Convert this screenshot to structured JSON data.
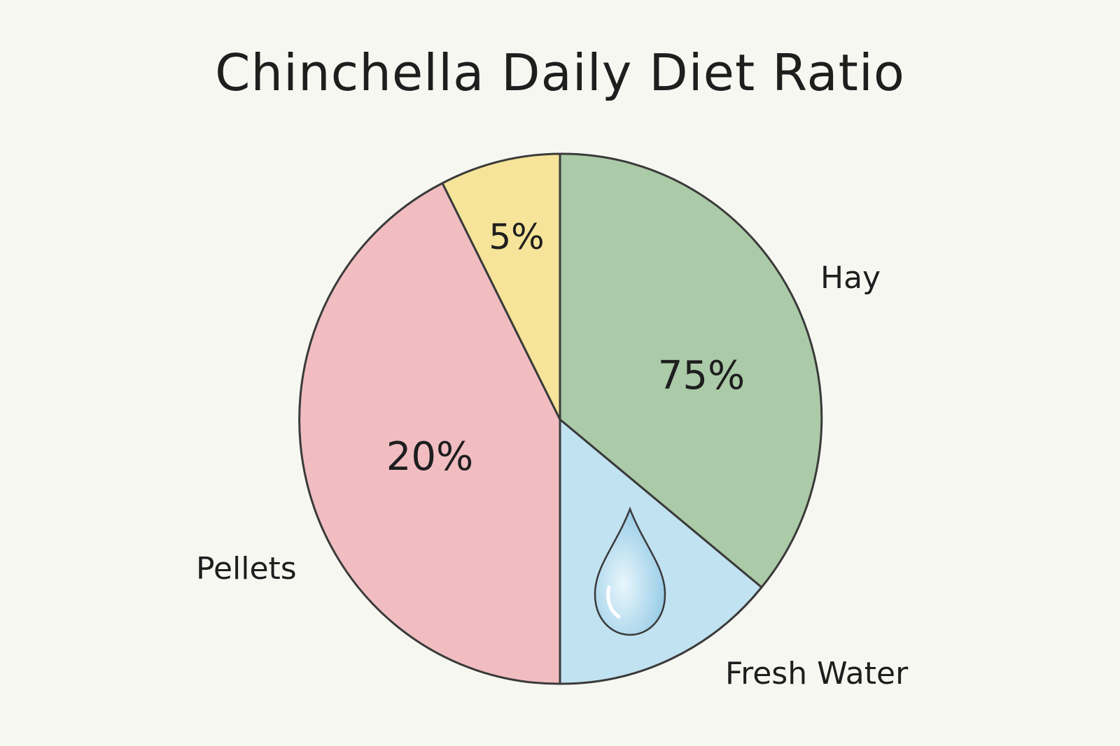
{
  "chart_data": {
    "type": "pie",
    "title": "Chinchella Daily Diet Ratio",
    "slices": [
      {
        "category": "Hay",
        "value_label": "75%",
        "color": "#9dc29a",
        "stroke": "#3a3a3a",
        "icon": ""
      },
      {
        "category": "Fresh Water",
        "value_label": "",
        "color": "#b7def0",
        "stroke": "#3a3a3a",
        "icon": "water-drop-icon"
      },
      {
        "category": "Pellets",
        "value_label": "20%",
        "color": "#f0b3b8",
        "stroke": "#3a3a3a",
        "icon": ""
      },
      {
        "category": "",
        "value_label": "5%",
        "color": "#f5e08a",
        "stroke": "#3a3a3a",
        "icon": ""
      }
    ],
    "legend": "none",
    "grid": false
  }
}
